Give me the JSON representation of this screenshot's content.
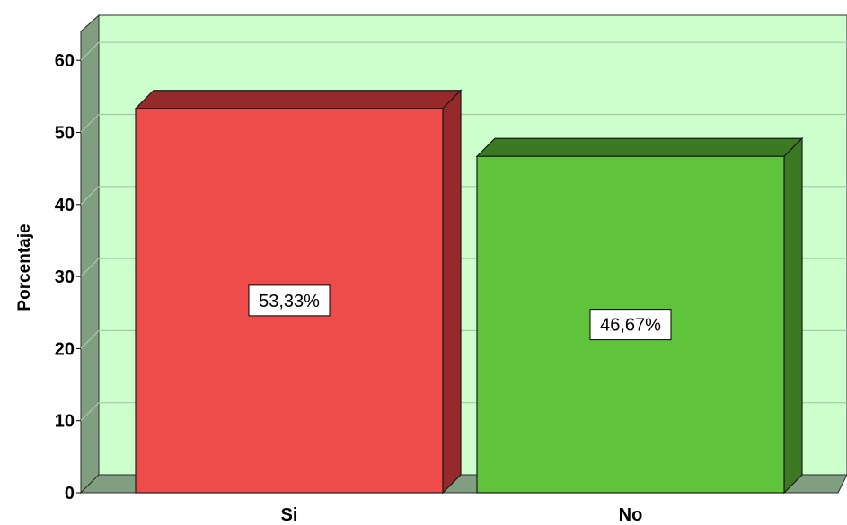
{
  "chart_data": {
    "type": "bar",
    "categories": [
      "Si",
      "No"
    ],
    "values": [
      53.33,
      46.67
    ],
    "data_labels": [
      "53,33%",
      "46,67%"
    ],
    "ylabel": "Porcentaje",
    "xlabel": "",
    "ylim": [
      0,
      65
    ],
    "yticks": [
      "0",
      "10",
      "20",
      "30",
      "40",
      "50",
      "60"
    ],
    "grid": true,
    "colors": {
      "background": "#ccffcc",
      "side_wall": "#7f9f7f",
      "floor": "#809f80",
      "gridline": "#a8c8a8",
      "bars": [
        {
          "front": "#ee4b4b",
          "top": "#962a2a",
          "side": "#962a2a"
        },
        {
          "front": "#5fc43b",
          "top": "#3b7a23",
          "side": "#3b7a23"
        }
      ]
    }
  }
}
